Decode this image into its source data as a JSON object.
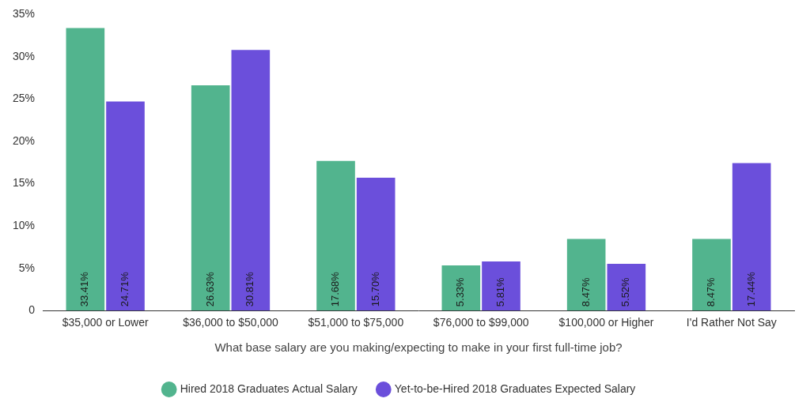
{
  "chart_data": {
    "type": "bar",
    "x_label": "What base salary are you making/expecting to make in your first full-time job?",
    "categories": [
      "$35,000 or Lower",
      "$36,000 to $50,000",
      "$51,000 to $75,000",
      "$76,000 to $99,000",
      "$100,000 or Higher",
      "I'd Rather Not Say"
    ],
    "series": [
      {
        "name": "Hired 2018 Graduates Actual Salary",
        "color": "#52b48e",
        "values": [
          33.41,
          26.63,
          17.68,
          5.33,
          8.47,
          8.47
        ],
        "value_labels": [
          "33.41%",
          "26.63%",
          "17.68%",
          "5.33%",
          "8.47%",
          "8.47%"
        ]
      },
      {
        "name": "Yet-to-be-Hired 2018 Graduates Expected Salary",
        "color": "#6b4fdb",
        "values": [
          24.71,
          30.81,
          15.7,
          5.81,
          5.52,
          17.44
        ],
        "value_labels": [
          "24.71%",
          "30.81%",
          "15.70%",
          "5.81%",
          "5.52%",
          "17.44%"
        ]
      }
    ],
    "ylim": [
      0,
      35
    ],
    "yticks": [
      0,
      {
        "value": 5,
        "label": "5%"
      },
      {
        "value": 10,
        "label": "10%"
      },
      {
        "value": 15,
        "label": "15%"
      },
      {
        "value": 20,
        "label": "20%"
      },
      {
        "value": 25,
        "label": "25%"
      },
      {
        "value": 30,
        "label": "30%"
      },
      {
        "value": 35,
        "label": "35%"
      }
    ],
    "grid": false,
    "legend": "bottom",
    "data_labels": true
  }
}
